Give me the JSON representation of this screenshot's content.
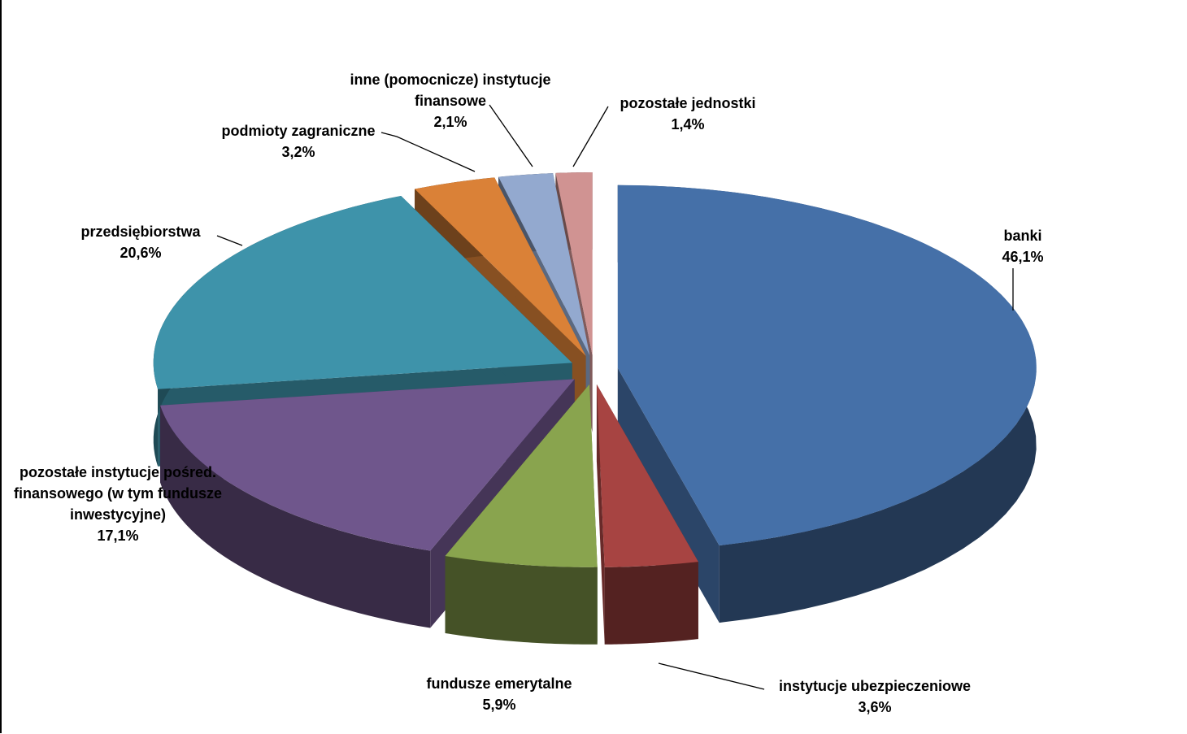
{
  "chart_data": {
    "type": "pie",
    "style": "3d-exploded",
    "legend": "none",
    "slices": [
      {
        "label_lines": [
          "banki"
        ],
        "value": 46.1,
        "value_label": "46,1%",
        "color": "#4570A8"
      },
      {
        "label_lines": [
          "instytucje ubezpieczeniowe"
        ],
        "value": 3.6,
        "value_label": "3,6%",
        "color": "#A74442"
      },
      {
        "label_lines": [
          "fundusze emerytalne"
        ],
        "value": 5.9,
        "value_label": "5,9%",
        "color": "#89A44E"
      },
      {
        "label_lines": [
          "pozostałe instytucje pośred.",
          "finansowego (w tym fundusze",
          "inwestycyjne)"
        ],
        "value": 17.1,
        "value_label": "17,1%",
        "color": "#6F568C"
      },
      {
        "label_lines": [
          "przedsiębiorstwa"
        ],
        "value": 20.6,
        "value_label": "20,6%",
        "color": "#3E93AA"
      },
      {
        "label_lines": [
          "podmioty zagraniczne"
        ],
        "value": 3.2,
        "value_label": "3,2%",
        "color": "#DA8137"
      },
      {
        "label_lines": [
          "inne (pomocnicze) instytucje",
          "finansowe"
        ],
        "value": 2.1,
        "value_label": "2,1%",
        "color": "#93A9CF"
      },
      {
        "label_lines": [
          "pozostałe jednostki"
        ],
        "value": 1.4,
        "value_label": "1,4%",
        "color": "#D09392"
      }
    ]
  }
}
